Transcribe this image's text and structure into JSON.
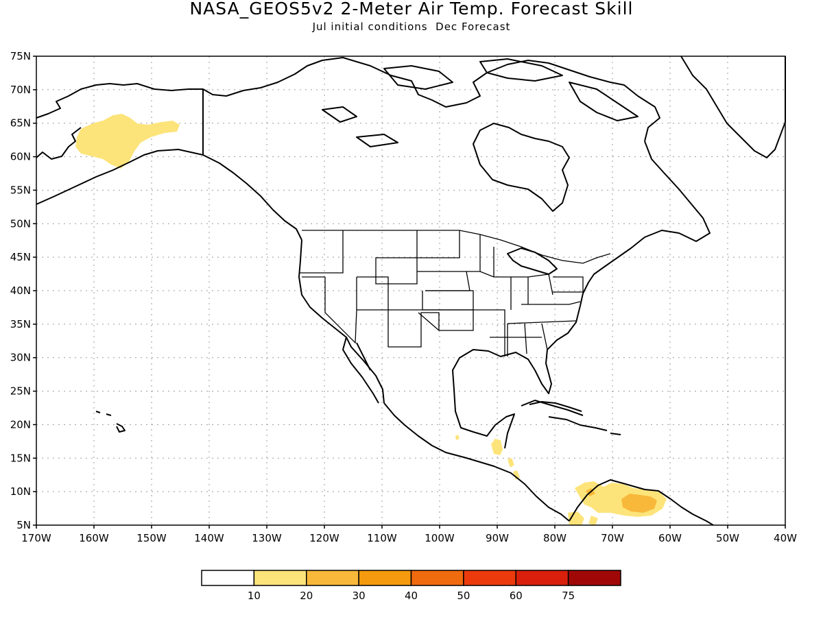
{
  "title": "NASA_GEOS5v2 2-Meter Air Temp. Forecast Skill",
  "subtitle": "Jul initial conditions  Dec Forecast",
  "map": {
    "lat_labels": [
      "75N",
      "70N",
      "65N",
      "60N",
      "55N",
      "50N",
      "45N",
      "40N",
      "35N",
      "30N",
      "25N",
      "20N",
      "15N",
      "10N",
      "5N"
    ],
    "lon_labels": [
      "170W",
      "160W",
      "150W",
      "140W",
      "130W",
      "120W",
      "110W",
      "100W",
      "90W",
      "80W",
      "70W",
      "60W",
      "50W",
      "40W"
    ],
    "extent": {
      "lon": [
        -170,
        -40
      ],
      "lat": [
        5,
        75
      ]
    },
    "grid": "dotted"
  },
  "skill_regions": [
    {
      "name": "Alaska",
      "level": "10-20"
    },
    {
      "name": "Central America",
      "level": "10-20"
    },
    {
      "name": "Northern South America",
      "level": "10-30"
    }
  ],
  "colorbar": {
    "labels": [
      "10",
      "20",
      "30",
      "40",
      "50",
      "60",
      "75"
    ],
    "colors": [
      "#ffffff",
      "#fde47a",
      "#f8b83a",
      "#f59a0e",
      "#f06a0e",
      "#ec3a0c",
      "#d8200c",
      "#a00808"
    ]
  },
  "colors": {
    "coast": "#000000",
    "grid": "#999999"
  }
}
